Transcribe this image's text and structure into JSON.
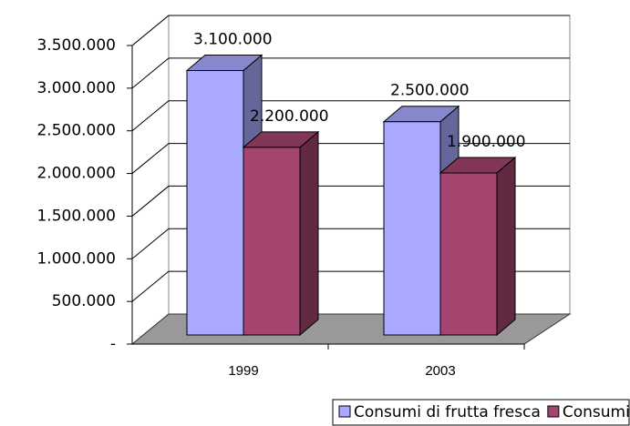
{
  "chart_data": {
    "type": "bar3d",
    "categories": [
      "1999",
      "2003"
    ],
    "series": [
      {
        "name": "Consumi di frutta fresca",
        "color": "#a9aaff",
        "values": [
          3100000,
          2500000
        ],
        "value_labels": [
          "3.100.000",
          "2.500.000"
        ]
      },
      {
        "name": "Consumi di ortaggi freschi",
        "color": "#a3456f",
        "values": [
          2200000,
          1900000
        ],
        "value_labels": [
          "2.200.000",
          "1.900.000"
        ]
      }
    ],
    "ylim": [
      0,
      3500000
    ],
    "yticks": [
      {
        "value": 0,
        "label": "-"
      },
      {
        "value": 500000,
        "label": "500.000"
      },
      {
        "value": 1000000,
        "label": "1.000.000"
      },
      {
        "value": 1500000,
        "label": "1.500.000"
      },
      {
        "value": 2000000,
        "label": "2.000.000"
      },
      {
        "value": 2500000,
        "label": "2.500.000"
      },
      {
        "value": 3000000,
        "label": "3.000.000"
      },
      {
        "value": 3500000,
        "label": "3.500.000"
      }
    ],
    "grid": true,
    "legend": "bottom"
  }
}
